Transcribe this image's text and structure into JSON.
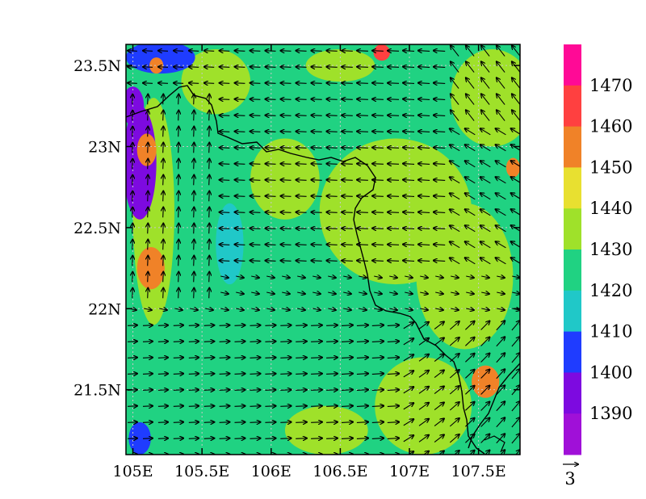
{
  "chart_data": {
    "type": "heatmap",
    "title": "",
    "xlabel": "",
    "ylabel": "",
    "x_ticks": [
      "105E",
      "105.5E",
      "106E",
      "106.5E",
      "107E",
      "107.5E"
    ],
    "x_tick_values": [
      105.0,
      105.5,
      106.0,
      106.5,
      107.0,
      107.5
    ],
    "y_ticks": [
      "23.5N",
      "23N",
      "22.5N",
      "22N",
      "21.5N"
    ],
    "y_tick_values": [
      23.5,
      23.0,
      22.5,
      22.0,
      21.5
    ],
    "xlim": [
      104.95,
      107.8
    ],
    "ylim": [
      21.1,
      23.63
    ],
    "colorbar": {
      "labels": [
        "1390",
        "1400",
        "1410",
        "1420",
        "1430",
        "1440",
        "1450",
        "1460",
        "1470"
      ],
      "colors": [
        "#a010d8",
        "#7d0ae0",
        "#1f3cff",
        "#20c8c8",
        "#20d282",
        "#9fe12a",
        "#e8e030",
        "#f08228",
        "#ff4040",
        "#ff0a96"
      ]
    },
    "vector_reference": {
      "label": "3"
    },
    "contour_blobs": [
      {
        "lon": 105.05,
        "lat": 22.9,
        "level": 1390,
        "rx": 0.12,
        "ry": 0.35
      },
      {
        "lon": 105.0,
        "lat": 23.25,
        "level": 1395,
        "rx": 0.08,
        "ry": 0.12
      },
      {
        "lon": 105.2,
        "lat": 23.55,
        "level": 1405,
        "rx": 0.25,
        "ry": 0.1
      },
      {
        "lon": 105.1,
        "lat": 22.98,
        "level": 1450,
        "rx": 0.07,
        "ry": 0.1
      },
      {
        "lon": 105.13,
        "lat": 22.25,
        "level": 1450,
        "rx": 0.1,
        "ry": 0.13
      },
      {
        "lon": 105.17,
        "lat": 23.5,
        "level": 1450,
        "rx": 0.05,
        "ry": 0.05
      },
      {
        "lon": 106.8,
        "lat": 23.58,
        "level": 1460,
        "rx": 0.06,
        "ry": 0.05
      },
      {
        "lon": 107.75,
        "lat": 22.87,
        "level": 1450,
        "rx": 0.05,
        "ry": 0.06
      },
      {
        "lon": 107.55,
        "lat": 21.55,
        "level": 1450,
        "rx": 0.1,
        "ry": 0.1
      },
      {
        "lon": 106.1,
        "lat": 22.8,
        "level": 1435,
        "rx": 0.25,
        "ry": 0.25
      },
      {
        "lon": 106.9,
        "lat": 22.6,
        "level": 1435,
        "rx": 0.55,
        "ry": 0.45
      },
      {
        "lon": 107.4,
        "lat": 22.2,
        "level": 1435,
        "rx": 0.35,
        "ry": 0.45
      },
      {
        "lon": 107.6,
        "lat": 23.3,
        "level": 1435,
        "rx": 0.3,
        "ry": 0.3
      },
      {
        "lon": 106.5,
        "lat": 23.5,
        "level": 1435,
        "rx": 0.25,
        "ry": 0.1
      },
      {
        "lon": 105.6,
        "lat": 23.4,
        "level": 1435,
        "rx": 0.25,
        "ry": 0.2
      },
      {
        "lon": 106.4,
        "lat": 21.25,
        "level": 1435,
        "rx": 0.3,
        "ry": 0.15
      },
      {
        "lon": 107.1,
        "lat": 21.4,
        "level": 1435,
        "rx": 0.35,
        "ry": 0.3
      },
      {
        "lon": 105.15,
        "lat": 22.6,
        "level": 1435,
        "rx": 0.15,
        "ry": 0.7
      },
      {
        "lon": 105.7,
        "lat": 22.4,
        "level": 1415,
        "rx": 0.1,
        "ry": 0.25
      },
      {
        "lon": 105.05,
        "lat": 21.2,
        "level": 1405,
        "rx": 0.08,
        "ry": 0.1
      }
    ],
    "wind_field": "vector arrows over grid, westward in north, eastward in south"
  }
}
